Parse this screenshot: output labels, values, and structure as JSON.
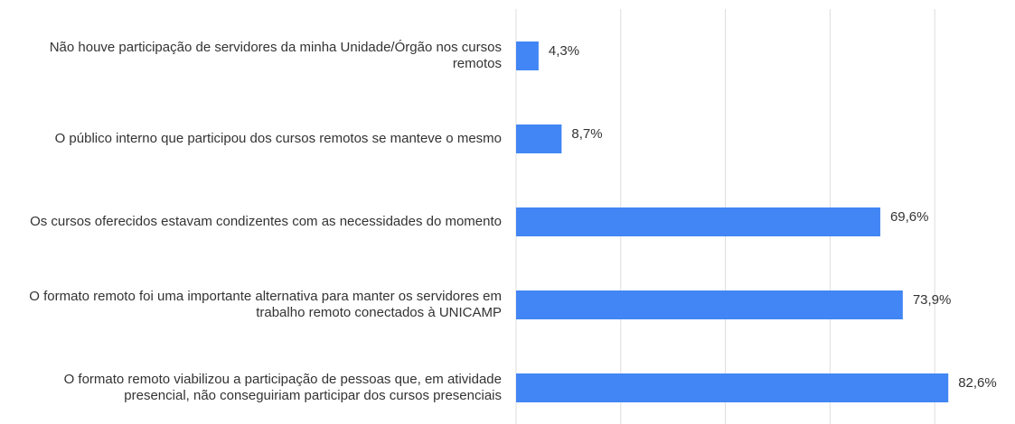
{
  "chart_data": {
    "type": "bar",
    "orientation": "horizontal",
    "categories": [
      "Não houve participação de servidores da minha Unidade/Órgão nos cursos remotos",
      "O público interno que participou dos cursos remotos se manteve o mesmo",
      "Os cursos oferecidos estavam condizentes com as necessidades do momento",
      "O formato remoto foi uma importante alternativa para manter os servidores em trabalho remoto conectados à UNICAMP",
      "O formato remoto viabilizou a participação de pessoas que, em atividade presencial, não conseguiriam participar dos cursos presenciais"
    ],
    "values": [
      4.3,
      8.7,
      69.6,
      73.9,
      82.6
    ],
    "value_labels": [
      "4,3%",
      "8,7%",
      "69,6%",
      "73,9%",
      "82,6%"
    ],
    "color": "#4285f4",
    "xlim": [
      0,
      95
    ],
    "xticks": [
      0,
      20,
      40,
      60,
      80
    ],
    "grid": true
  }
}
